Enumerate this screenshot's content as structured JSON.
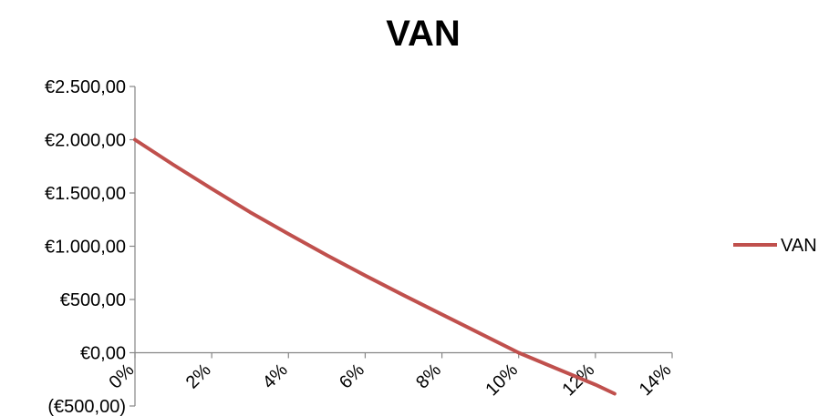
{
  "chart_data": {
    "type": "line",
    "title": "VAN",
    "xlabel": "",
    "ylabel": "",
    "x_ticks": [
      "0%",
      "2%",
      "4%",
      "6%",
      "8%",
      "10%",
      "12%",
      "14%"
    ],
    "y_ticks": [
      "€2.500,00",
      "€2.000,00",
      "€1.500,00",
      "€1.000,00",
      "€500,00",
      "€0,00",
      "(€500,00)"
    ],
    "negative_tick_color": "#ff0000",
    "xlim": [
      0,
      14
    ],
    "ylim": [
      -500,
      2500
    ],
    "legend_position": "right",
    "series": [
      {
        "name": "VAN",
        "color": "#c0504d",
        "x": [
          0,
          1,
          2,
          3,
          4,
          5,
          6,
          7,
          8,
          9,
          10,
          11,
          12,
          12.5
        ],
        "y": [
          2000,
          1765,
          1540,
          1320,
          1115,
          915,
          725,
          540,
          360,
          180,
          0,
          -150,
          -300,
          -385
        ]
      }
    ]
  }
}
